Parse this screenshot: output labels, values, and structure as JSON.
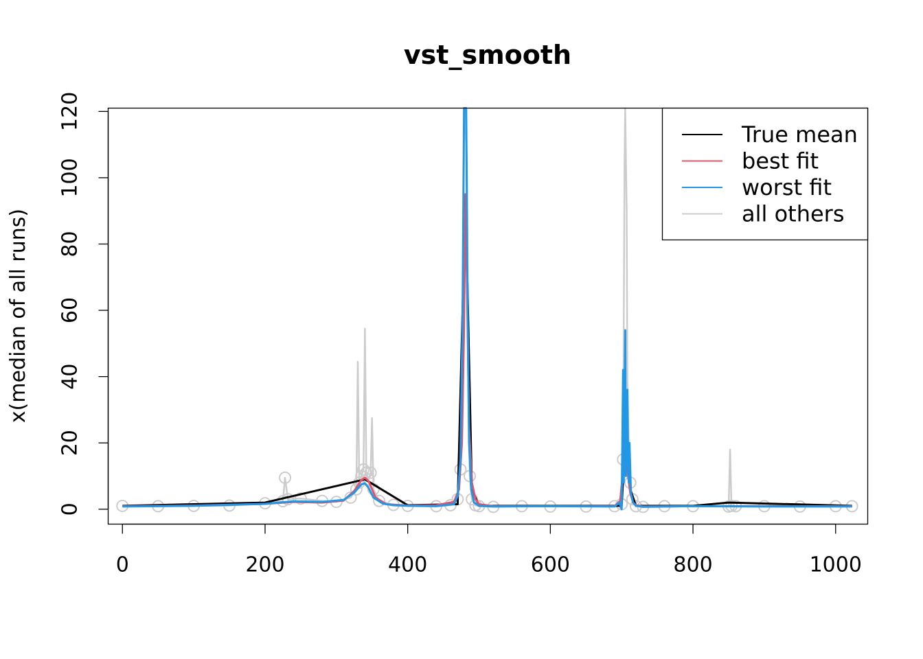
{
  "chart_data": {
    "type": "line",
    "title": "vst_smooth",
    "xlabel": "",
    "ylabel": "x(median of all runs)",
    "xlim": [
      -20,
      1045
    ],
    "ylim": [
      -4.5,
      121
    ],
    "x_ticks": [
      0,
      200,
      400,
      600,
      800,
      1000
    ],
    "x_tick_labels": [
      "0",
      "200",
      "400",
      "600",
      "800",
      "1000"
    ],
    "y_ticks": [
      0,
      20,
      40,
      60,
      80,
      100,
      120
    ],
    "y_tick_labels": [
      "0",
      "20",
      "40",
      "60",
      "80",
      "100",
      "120"
    ],
    "legend": {
      "position": "top-right",
      "entries": [
        {
          "label": "True mean",
          "color": "#000000"
        },
        {
          "label": "best fit",
          "color": "#DF536B"
        },
        {
          "label": "worst fit",
          "color": "#2297E6"
        },
        {
          "label": "all others",
          "color": "#CCCCCC"
        }
      ]
    },
    "series": [
      {
        "name": "all others",
        "color": "#CCCCCC",
        "style": "line-with-points",
        "x": [
          0,
          50,
          100,
          150,
          200,
          225,
          228,
          232,
          250,
          280,
          300,
          320,
          328,
          330,
          332,
          335,
          338,
          340,
          342,
          345,
          348,
          350,
          352,
          360,
          380,
          400,
          440,
          460,
          470,
          474,
          477,
          479,
          481,
          483,
          485,
          487,
          490,
          495,
          500,
          520,
          560,
          600,
          650,
          690,
          700,
          702,
          704,
          705,
          707,
          708,
          710,
          712,
          715,
          720,
          730,
          760,
          800,
          850,
          852,
          854,
          860,
          900,
          950,
          1000,
          1023
        ],
        "y": [
          1,
          0.9,
          1,
          1.1,
          1.8,
          2.4,
          9.5,
          3,
          3.2,
          2.5,
          2.2,
          3.5,
          6,
          44.5,
          8,
          10,
          12,
          54.5,
          11,
          9,
          11,
          27.5,
          6,
          2.5,
          1.3,
          1,
          0.9,
          1.2,
          3,
          12,
          50,
          110,
          121,
          105,
          45,
          10,
          3,
          1.2,
          0.9,
          0.7,
          0.9,
          0.8,
          0.8,
          0.9,
          1.5,
          15,
          104,
          121,
          90,
          40,
          20,
          8,
          3,
          0.9,
          0.7,
          0.9,
          0.9,
          0.8,
          18,
          1,
          0.9,
          0.9,
          0.8,
          0.9,
          0.9
        ]
      },
      {
        "name": "True mean",
        "color": "#000000",
        "x": [
          0,
          200,
          340,
          400,
          470,
          481,
          490,
          500,
          700,
          706,
          712,
          720,
          800,
          850,
          1023
        ],
        "y": [
          1,
          2,
          9,
          1.2,
          1.5,
          95,
          6,
          1.0,
          1.0,
          25,
          6,
          1.0,
          1.0,
          2,
          1
        ]
      },
      {
        "name": "best fit",
        "color": "#DF536B",
        "x": [
          0,
          100,
          200,
          240,
          280,
          310,
          325,
          335,
          340,
          345,
          355,
          370,
          400,
          440,
          465,
          472,
          476,
          479,
          481,
          483,
          486,
          490,
          495,
          500,
          520,
          600,
          690,
          698,
          702,
          705,
          707,
          709,
          712,
          716,
          720,
          730,
          800,
          900,
          1023
        ],
        "y": [
          0.9,
          1.1,
          1.6,
          2.2,
          2.0,
          2.6,
          5.5,
          8.8,
          9.5,
          8.5,
          3.5,
          1.5,
          1.1,
          1.2,
          2.2,
          6,
          20,
          55,
          95,
          70,
          25,
          8,
          3,
          1.5,
          0.9,
          0.9,
          0.9,
          2.5,
          12,
          25,
          18,
          10,
          5,
          2,
          1.2,
          0.8,
          0.9,
          0.9,
          0.9
        ]
      },
      {
        "name": "worst fit",
        "color": "#2297E6",
        "x": [
          0,
          100,
          200,
          240,
          280,
          310,
          325,
          335,
          340,
          345,
          352,
          365,
          380,
          400,
          440,
          465,
          470,
          474,
          477,
          479,
          480,
          482,
          484,
          486,
          489,
          493,
          500,
          520,
          600,
          690,
          697,
          700,
          702,
          703,
          704,
          705,
          706,
          707,
          708,
          709,
          710,
          711,
          713,
          716,
          720,
          730,
          800,
          900,
          1023
        ],
        "y": [
          0.8,
          1.0,
          1.6,
          2.4,
          2.2,
          2.8,
          5,
          7.5,
          7.8,
          6.5,
          3.5,
          1.7,
          1.2,
          1.0,
          0.9,
          1.5,
          4,
          15,
          60,
          121,
          121,
          121,
          60,
          20,
          6,
          2,
          1.0,
          0.8,
          0.9,
          0.8,
          2,
          0,
          42,
          8,
          35,
          54,
          10,
          24,
          36,
          15,
          8,
          20,
          5,
          2,
          1.0,
          0.7,
          0.9,
          0.8,
          0.8
        ]
      }
    ]
  }
}
